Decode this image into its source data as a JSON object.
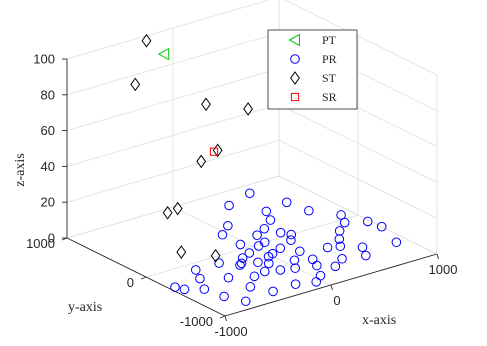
{
  "chart_data": {
    "type": "scatter",
    "title": "",
    "xlabel": "x-axis",
    "ylabel": "y-axis",
    "zlabel": "z-axis",
    "xlim": [
      -1000,
      1000
    ],
    "ylim": [
      -1000,
      1000
    ],
    "zlim": [
      0,
      100
    ],
    "xticks": [
      "-1000",
      "0",
      "1000"
    ],
    "yticks": [
      "-1000",
      "0",
      "1000"
    ],
    "zticks": [
      "0",
      "20",
      "40",
      "60",
      "80",
      "100"
    ],
    "grid": true,
    "legend_position": "top-right",
    "colors": {
      "PT": "#00cc00",
      "PR": "#0000ff",
      "ST": "#000000",
      "SR": "#ff0000"
    },
    "series": [
      {
        "name": "PT",
        "marker": "triangle-left",
        "points": [
          [
            -150,
            910,
            90
          ]
        ]
      },
      {
        "name": "SR",
        "marker": "square",
        "points": [
          [
            -60,
            400,
            45
          ]
        ]
      },
      {
        "name": "ST",
        "marker": "diamond",
        "points": [
          [
            -900,
            270,
            100
          ],
          [
            -310,
            920,
            100
          ],
          [
            140,
            770,
            60
          ],
          [
            -360,
            160,
            50
          ],
          [
            -850,
            -200,
            40
          ],
          [
            -960,
            -220,
            40
          ],
          [
            -130,
            260,
            50
          ],
          [
            440,
            640,
            55
          ],
          [
            -600,
            90,
            5
          ],
          [
            -440,
            -130,
            5
          ]
        ]
      },
      {
        "name": "PR",
        "marker": "circle",
        "points": [
          [
            -950,
            -300,
            0
          ],
          [
            -920,
            -380,
            0
          ],
          [
            -700,
            -280,
            0
          ],
          [
            -520,
            -400,
            0
          ],
          [
            -400,
            -120,
            0
          ],
          [
            -200,
            -150,
            0
          ],
          [
            -50,
            80,
            0
          ],
          [
            160,
            150,
            0
          ],
          [
            500,
            490,
            0
          ],
          [
            350,
            760,
            0
          ],
          [
            620,
            860,
            0
          ],
          [
            730,
            540,
            0
          ],
          [
            -770,
            -680,
            0
          ],
          [
            -500,
            -650,
            0
          ],
          [
            -350,
            -500,
            0
          ],
          [
            -230,
            -470,
            0
          ],
          [
            -110,
            -360,
            0
          ],
          [
            -30,
            -250,
            0
          ],
          [
            30,
            -220,
            0
          ],
          [
            140,
            -170,
            0
          ],
          [
            300,
            -90,
            0
          ],
          [
            370,
            0,
            0
          ],
          [
            220,
            -310,
            0
          ],
          [
            -10,
            -560,
            0
          ],
          [
            -200,
            -820,
            0
          ],
          [
            -50,
            -880,
            0
          ],
          [
            50,
            -800,
            0
          ],
          [
            250,
            -720,
            0
          ],
          [
            380,
            -630,
            0
          ],
          [
            520,
            -420,
            0
          ],
          [
            600,
            -300,
            0
          ],
          [
            700,
            -170,
            0
          ],
          [
            830,
            -60,
            0
          ],
          [
            900,
            80,
            0
          ],
          [
            760,
            300,
            0
          ],
          [
            420,
            330,
            0
          ],
          [
            280,
            220,
            0
          ],
          [
            120,
            0,
            0
          ],
          [
            -100,
            -100,
            0
          ],
          [
            -300,
            -250,
            0
          ],
          [
            80,
            -430,
            0
          ],
          [
            200,
            -500,
            0
          ],
          [
            430,
            -380,
            0
          ],
          [
            -620,
            -120,
            0
          ],
          [
            -800,
            -470,
            0
          ],
          [
            -270,
            -230,
            0
          ],
          [
            -160,
            -290,
            0
          ],
          [
            640,
            -540,
            0
          ],
          [
            560,
            -690,
            0
          ],
          [
            150,
            -620,
            0
          ],
          [
            900,
            -620,
            0
          ],
          [
            1000,
            -300,
            0
          ],
          [
            980,
            -150,
            0
          ],
          [
            -420,
            -830,
            0
          ],
          [
            -120,
            -520,
            0
          ],
          [
            40,
            -30,
            0
          ],
          [
            330,
            80,
            0
          ],
          [
            -40,
            320,
            0
          ],
          [
            100,
            440,
            0
          ],
          [
            -700,
            -860,
            0
          ]
        ]
      }
    ]
  }
}
